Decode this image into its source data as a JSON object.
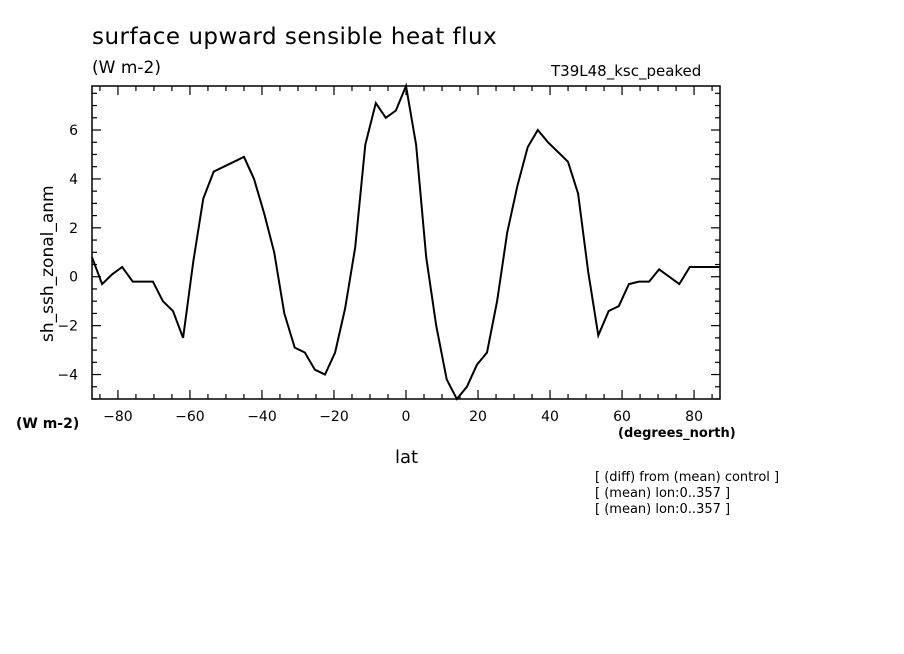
{
  "chart_data": {
    "type": "line",
    "title": "surface upward sensible heat flux",
    "units": "(W m-2)",
    "run_label": "T39L48_ksc_peaked",
    "ylabel": "sh_ssh_zonal_anm",
    "xlabel": "lat",
    "xunits": "(degrees_north)",
    "y_units_left": "(W m-2)",
    "xlim": [
      -87.2,
      87.2
    ],
    "ylim": [
      -5,
      7.8
    ],
    "xticks": [
      -80,
      -60,
      -40,
      -20,
      0,
      20,
      40,
      60,
      80
    ],
    "yticks": [
      -4,
      -2,
      0,
      2,
      4,
      6
    ],
    "grid": false,
    "series": [
      {
        "x": [
          -87.2,
          -84.4,
          -81.6,
          -78.8,
          -75.9,
          -73.1,
          -70.3,
          -67.5,
          -64.7,
          -61.9,
          -59.1,
          -56.3,
          -53.4,
          -50.6,
          -47.8,
          -45.0,
          -42.2,
          -39.4,
          -36.6,
          -33.8,
          -30.9,
          -28.1,
          -25.3,
          -22.5,
          -19.7,
          -16.9,
          -14.1,
          -11.3,
          -8.4,
          -5.6,
          -2.8,
          0.0,
          2.8,
          5.6,
          8.4,
          11.3,
          14.1,
          16.9,
          19.7,
          22.5,
          25.3,
          28.1,
          30.9,
          33.8,
          36.6,
          39.4,
          42.2,
          45.0,
          47.8,
          50.6,
          53.4,
          56.3,
          59.1,
          61.9,
          64.7,
          67.5,
          70.3,
          73.1,
          75.9,
          78.8,
          81.6,
          84.4,
          87.2
        ],
        "values": [
          0.8,
          -0.3,
          0.1,
          0.4,
          -0.2,
          -0.2,
          -0.2,
          -1.0,
          -1.4,
          -2.5,
          0.6,
          3.2,
          4.3,
          4.5,
          4.7,
          4.9,
          4.0,
          2.6,
          1.0,
          -1.5,
          -2.9,
          -3.1,
          -3.8,
          -4.0,
          -3.1,
          -1.3,
          1.2,
          5.4,
          7.1,
          6.5,
          6.8,
          7.8,
          5.4,
          0.8,
          -2.0,
          -4.2,
          -5.0,
          -4.5,
          -3.6,
          -3.1,
          -1.0,
          1.8,
          3.7,
          5.3,
          6.0,
          5.5,
          5.1,
          4.7,
          3.4,
          0.2,
          -2.4,
          -1.4,
          -1.2,
          -0.3,
          -0.2,
          -0.2,
          0.3,
          0.0,
          -0.3,
          0.4,
          0.4,
          0.4,
          0.4
        ]
      }
    ]
  },
  "notes": [
    "[ (diff) from (mean) control ]",
    "[ (mean) lon:0..357 ]",
    "[ (mean) lon:0..357 ]"
  ]
}
